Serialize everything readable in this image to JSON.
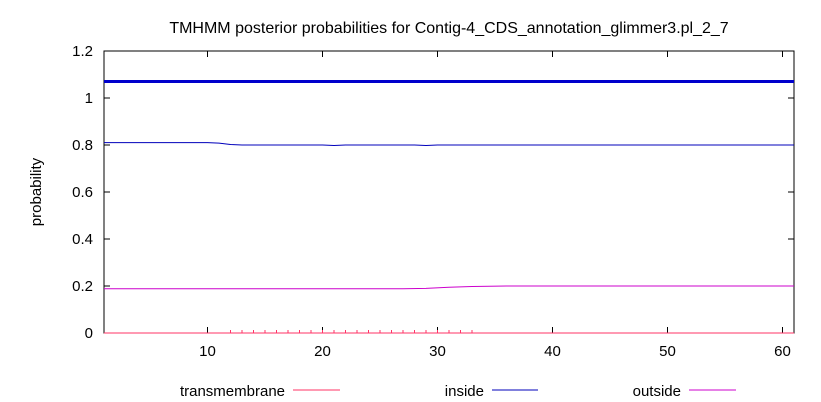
{
  "chart_data": {
    "type": "line",
    "title": "TMHMM posterior probabilities for Contig-4_CDS_annotation_glimmer3.pl_2_7",
    "xlabel": "",
    "ylabel": "probability",
    "xlim": [
      1,
      61
    ],
    "ylim": [
      0,
      1.2
    ],
    "x_ticks": [
      10,
      20,
      30,
      40,
      50,
      60
    ],
    "y_ticks": [
      0,
      0.2,
      0.4,
      0.6,
      0.8,
      1,
      1.2
    ],
    "y_tick_labels": [
      "0",
      "0.2",
      "0.4",
      "0.6",
      "0.8",
      "1",
      "1.2"
    ],
    "grid": false,
    "legend_position": "bottom",
    "reference_line": {
      "y": 1.07,
      "color": "#0000cc"
    },
    "series": [
      {
        "name": "transmembrane",
        "color": "#ff3366",
        "x": [
          1,
          61
        ],
        "values": [
          0.0,
          0.0
        ]
      },
      {
        "name": "inside",
        "color": "#0000bb",
        "x": [
          1,
          5,
          10,
          11,
          12,
          13,
          20,
          21,
          22,
          28,
          29,
          30,
          40,
          50,
          61
        ],
        "values": [
          0.81,
          0.81,
          0.81,
          0.808,
          0.802,
          0.8,
          0.8,
          0.798,
          0.8,
          0.8,
          0.798,
          0.8,
          0.8,
          0.8,
          0.8
        ]
      },
      {
        "name": "outside",
        "color": "#cc00cc",
        "x": [
          1,
          10,
          20,
          27,
          29,
          31,
          33,
          36,
          40,
          50,
          61
        ],
        "values": [
          0.188,
          0.188,
          0.188,
          0.188,
          0.19,
          0.195,
          0.198,
          0.2,
          0.2,
          0.2,
          0.2
        ]
      }
    ],
    "rug_ticks_x": [
      12,
      13,
      14,
      15,
      16,
      17,
      18,
      19,
      20,
      21,
      22,
      23,
      24,
      25,
      26,
      27,
      28,
      29,
      30,
      31,
      32,
      33
    ],
    "rug_color": "#ff3366"
  }
}
